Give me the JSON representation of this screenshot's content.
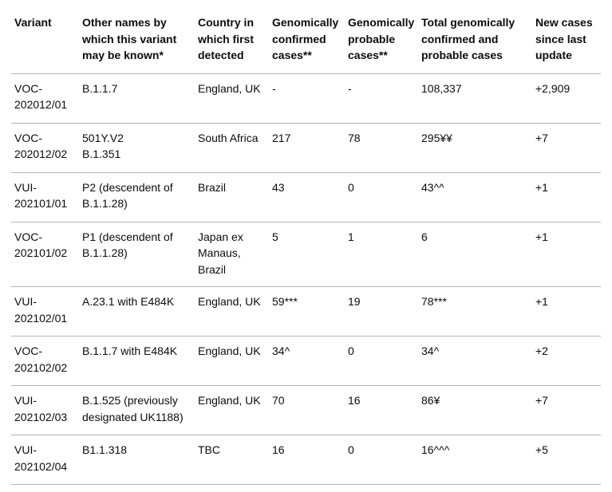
{
  "table": {
    "headers": {
      "variant": [
        "Variant"
      ],
      "names": [
        "Other names by",
        "which this variant",
        "may be known*"
      ],
      "country": [
        "Country in",
        "which first",
        "detected"
      ],
      "confirmed": [
        "Genomically",
        "confirmed",
        "cases**"
      ],
      "probable": [
        "Genomically",
        "probable",
        "cases**"
      ],
      "total": [
        "Total genomically",
        "confirmed and",
        "probable cases"
      ],
      "new": [
        "New cases",
        "since last",
        "update"
      ]
    },
    "rows": [
      {
        "variant": [
          "VOC-",
          "202012/01"
        ],
        "names": [
          "B.1.1.7"
        ],
        "country": [
          "England, UK"
        ],
        "confirmed": [
          "-"
        ],
        "probable": [
          "-"
        ],
        "total": [
          "108,337"
        ],
        "new": [
          "+2,909"
        ]
      },
      {
        "variant": [
          "VOC-",
          "202012/02"
        ],
        "names": [
          "501Y.V2",
          "B.1.351"
        ],
        "country": [
          "South Africa"
        ],
        "confirmed": [
          "217"
        ],
        "probable": [
          "78"
        ],
        "total": [
          "295¥¥"
        ],
        "new": [
          "+7"
        ]
      },
      {
        "variant": [
          "VUI-",
          "202101/01"
        ],
        "names": [
          "P2 (descendent of",
          "B.1.1.28)"
        ],
        "country": [
          "Brazil"
        ],
        "confirmed": [
          "43"
        ],
        "probable": [
          "0"
        ],
        "total": [
          "43^^"
        ],
        "new": [
          "+1"
        ]
      },
      {
        "variant": [
          "VOC-",
          "202101/02"
        ],
        "names": [
          "P1 (descendent of",
          "B.1.1.28)"
        ],
        "country": [
          "Japan ex",
          "Manaus,",
          "Brazil"
        ],
        "confirmed": [
          "5"
        ],
        "probable": [
          "1"
        ],
        "total": [
          "6"
        ],
        "new": [
          "+1"
        ]
      },
      {
        "variant": [
          "VUI-",
          "202102/01"
        ],
        "names": [
          "A.23.1 with E484K"
        ],
        "country": [
          "England, UK"
        ],
        "confirmed": [
          "59***"
        ],
        "probable": [
          "19"
        ],
        "total": [
          "78***"
        ],
        "new": [
          "+1"
        ]
      },
      {
        "variant": [
          "VOC-",
          "202102/02"
        ],
        "names": [
          "B.1.1.7 with E484K"
        ],
        "country": [
          "England, UK"
        ],
        "confirmed": [
          "34^"
        ],
        "probable": [
          "0"
        ],
        "total": [
          "34^"
        ],
        "new": [
          "+2"
        ]
      },
      {
        "variant": [
          "VUI-",
          "202102/03"
        ],
        "names": [
          "B.1.525 (previously",
          "designated UK1188)"
        ],
        "country": [
          "England, UK"
        ],
        "confirmed": [
          "70"
        ],
        "probable": [
          "16"
        ],
        "total": [
          "86¥"
        ],
        "new": [
          "+7"
        ]
      },
      {
        "variant": [
          "VUI-",
          "202102/04"
        ],
        "names": [
          "B1.1.318"
        ],
        "country": [
          "TBC"
        ],
        "confirmed": [
          "16"
        ],
        "probable": [
          "0"
        ],
        "total": [
          "16^^^"
        ],
        "new": [
          "+5"
        ]
      }
    ]
  }
}
